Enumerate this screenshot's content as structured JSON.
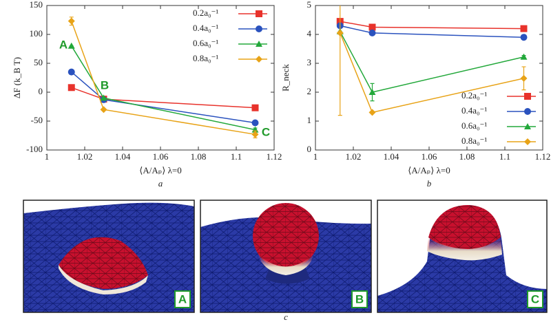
{
  "chart_data": [
    {
      "type": "line",
      "caption": "a",
      "x_label": "⟨A/Aₚ⟩ λ=0",
      "y_label": "ΔF (k_B T)",
      "x": [
        1.013,
        1.03,
        1.11
      ],
      "xlim": [
        1,
        1.12
      ],
      "xticks": [
        1,
        1.02,
        1.04,
        1.06,
        1.08,
        1.1,
        1.12
      ],
      "ylim": [
        -100,
        150
      ],
      "yticks": [
        -100,
        -50,
        0,
        50,
        100,
        150
      ],
      "legend": "upper right",
      "grid": false,
      "annotations": [
        "A",
        "B",
        "C"
      ],
      "series": [
        {
          "name": "0.2a₀⁻¹",
          "color": "#e8322b",
          "marker": "square",
          "values": [
            8,
            -12,
            -27
          ],
          "errors": [
            0,
            0,
            0
          ]
        },
        {
          "name": "0.4a₀⁻¹",
          "color": "#2a52be",
          "marker": "circle",
          "values": [
            35,
            -13,
            -53
          ],
          "errors": [
            0,
            2,
            4
          ]
        },
        {
          "name": "0.6a₀⁻¹",
          "color": "#22a83a",
          "marker": "triangle",
          "values": [
            80,
            -10,
            -65
          ],
          "errors": [
            0,
            0,
            3
          ]
        },
        {
          "name": "0.8a₀⁻¹",
          "color": "#e8a317",
          "marker": "diamond",
          "values": [
            123,
            -30,
            -73
          ],
          "errors": [
            7,
            0,
            6
          ]
        }
      ]
    },
    {
      "type": "line",
      "caption": "b",
      "x_label": "⟨A/Aₚ⟩ λ=0",
      "y_label": "R_neck",
      "x": [
        1.013,
        1.03,
        1.11
      ],
      "xlim": [
        1,
        1.12
      ],
      "xticks": [
        1,
        1.02,
        1.04,
        1.06,
        1.08,
        1.1,
        1.12
      ],
      "ylim": [
        0,
        5
      ],
      "yticks": [
        0,
        1,
        2,
        3,
        4,
        5
      ],
      "legend": "lower right",
      "grid": false,
      "annotations": [],
      "series": [
        {
          "name": "0.2a₀⁻¹",
          "color": "#e8322b",
          "marker": "square",
          "values": [
            4.45,
            4.25,
            4.2
          ],
          "errors": [
            0,
            0,
            0
          ]
        },
        {
          "name": "0.4a₀⁻¹",
          "color": "#2a52be",
          "marker": "circle",
          "values": [
            4.3,
            4.05,
            3.9
          ],
          "errors": [
            0,
            0,
            0
          ]
        },
        {
          "name": "0.6a₀⁻¹",
          "color": "#22a83a",
          "marker": "triangle",
          "values": [
            4.1,
            2.0,
            3.22
          ],
          "errors": [
            0,
            0.3,
            0.05
          ]
        },
        {
          "name": "0.8a₀⁻¹",
          "color": "#e8a317",
          "marker": "diamond",
          "values": [
            4.05,
            1.3,
            2.48
          ],
          "errors": [
            2.85,
            0,
            0.4
          ]
        }
      ]
    }
  ],
  "panels": [
    "A",
    "B",
    "C"
  ],
  "panel_caption": "c"
}
